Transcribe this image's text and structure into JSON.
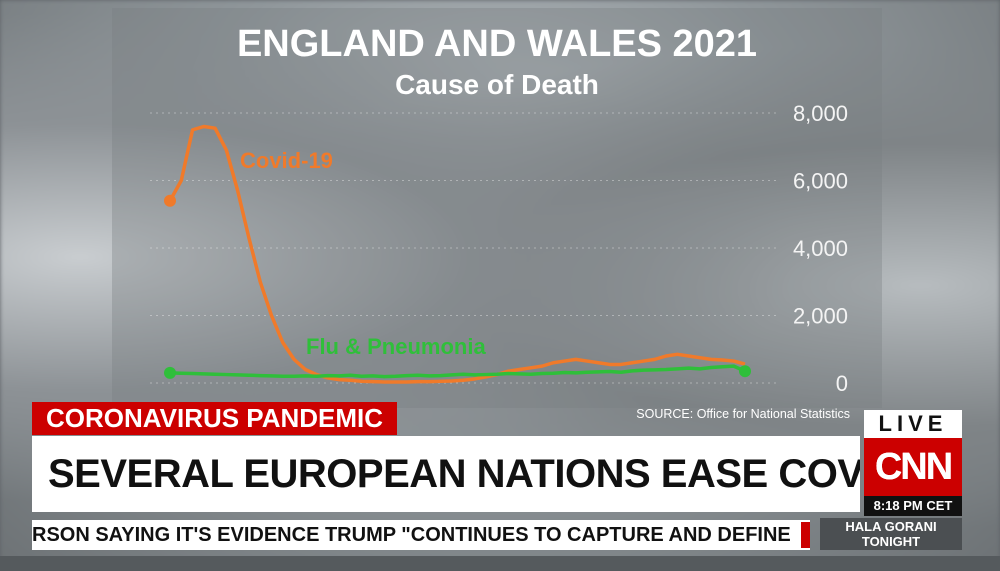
{
  "chart_data": {
    "type": "line",
    "title": "ENGLAND AND WALES 2021",
    "subtitle": "Cause of Death",
    "xlabel": "",
    "ylabel": "",
    "ylim": [
      0,
      8000
    ],
    "yticks": [
      "8,000",
      "6,000",
      "4,000",
      "2,000",
      "0"
    ],
    "yticks_values": [
      8000,
      6000,
      4000,
      2000,
      0
    ],
    "x": [
      1,
      2,
      3,
      4,
      5,
      6,
      7,
      8,
      9,
      10,
      11,
      12,
      13,
      14,
      15,
      16,
      17,
      18,
      19,
      20,
      21,
      22,
      23,
      24,
      25,
      26,
      27,
      28,
      29,
      30,
      31,
      32,
      33,
      34,
      35,
      36,
      37,
      38,
      39,
      40,
      41,
      42,
      43,
      44,
      45,
      46,
      47,
      48,
      49,
      50,
      51,
      52
    ],
    "series": [
      {
        "name": "Covid-19",
        "color": "#f07a2a",
        "values": [
          5400,
          6000,
          7500,
          7600,
          7550,
          6900,
          5700,
          4300,
          3000,
          2000,
          1200,
          700,
          400,
          250,
          150,
          100,
          80,
          50,
          40,
          30,
          30,
          30,
          40,
          40,
          50,
          60,
          80,
          120,
          180,
          250,
          350,
          400,
          450,
          500,
          600,
          650,
          700,
          650,
          600,
          550,
          550,
          600,
          650,
          700,
          800,
          850,
          800,
          750,
          700,
          680,
          650,
          560
        ]
      },
      {
        "name": "Flu & Pneumonia",
        "color": "#2fbf3a",
        "values": [
          300,
          290,
          280,
          270,
          260,
          250,
          240,
          230,
          220,
          210,
          200,
          200,
          210,
          200,
          220,
          210,
          230,
          200,
          210,
          190,
          200,
          220,
          230,
          210,
          220,
          240,
          260,
          240,
          250,
          260,
          280,
          270,
          260,
          280,
          290,
          310,
          300,
          320,
          330,
          340,
          320,
          360,
          380,
          390,
          400,
          420,
          440,
          420,
          460,
          480,
          500,
          350
        ]
      }
    ]
  },
  "source": "SOURCE: Office for National Statistics",
  "banner": {
    "tag": "CORONAVIRUS PANDEMIC",
    "headline": "SEVERAL EUROPEAN NATIONS EASE COVID RESTRICTIONS",
    "ticker": "RSON SAYING IT'S EVIDENCE TRUMP \"CONTINUES TO CAPTURE AND DEFINE"
  },
  "network": {
    "live": "LIVE",
    "logo": "CNN",
    "time": "8:18 PM CET",
    "show_line1": "HALA GORANI",
    "show_line2": "TONIGHT"
  },
  "colors": {
    "brand_red": "#cc0000",
    "covid": "#f07a2a",
    "flu": "#2fbf3a"
  }
}
